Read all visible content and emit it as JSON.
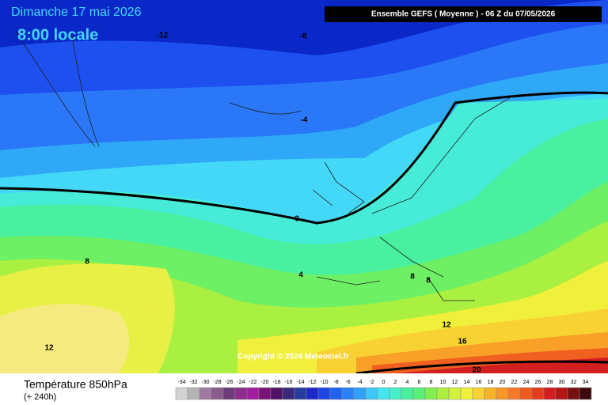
{
  "header": {
    "date": "Dimanche 17 mai 2026",
    "time": "8:00 locale",
    "model": "Ensemble GEFS  ( Moyenne )  -  06 Z du 07/05/2026"
  },
  "map": {
    "contour_labels": [
      "-12",
      "-8",
      "-4",
      "0",
      "4",
      "8",
      "8",
      "8",
      "12",
      "12",
      "16",
      "20"
    ],
    "copyright": "Copyright © 2026 Meteociel.fr"
  },
  "footer": {
    "title": "Température 850hPa",
    "lead": "(+ 240h)",
    "scale_values": [
      -34,
      -32,
      -30,
      -28,
      -26,
      -24,
      -22,
      -20,
      -18,
      -16,
      -14,
      -12,
      -10,
      -8,
      -6,
      -4,
      -2,
      0,
      2,
      4,
      6,
      8,
      10,
      12,
      14,
      16,
      18,
      20,
      22,
      24,
      26,
      28,
      30,
      32,
      34
    ],
    "scale_colors": [
      "#d2d2d2",
      "#b4b4b4",
      "#9e7aa0",
      "#8a5c8c",
      "#6e3c78",
      "#8c2c8c",
      "#a01ea0",
      "#781478",
      "#501464",
      "#3c2878",
      "#283ca0",
      "#1e28c8",
      "#1e46e6",
      "#1e64f0",
      "#2882f8",
      "#32a0f8",
      "#3cc8f8",
      "#46e6f0",
      "#46f0c8",
      "#46f09c",
      "#5af078",
      "#82f050",
      "#aaf03c",
      "#d2f03c",
      "#f0f03c",
      "#f8d232",
      "#f8b428",
      "#f89628",
      "#f87828",
      "#f05a1e",
      "#e63c1e",
      "#d21e1e",
      "#b41414",
      "#781010",
      "#3c0a0a"
    ]
  }
}
